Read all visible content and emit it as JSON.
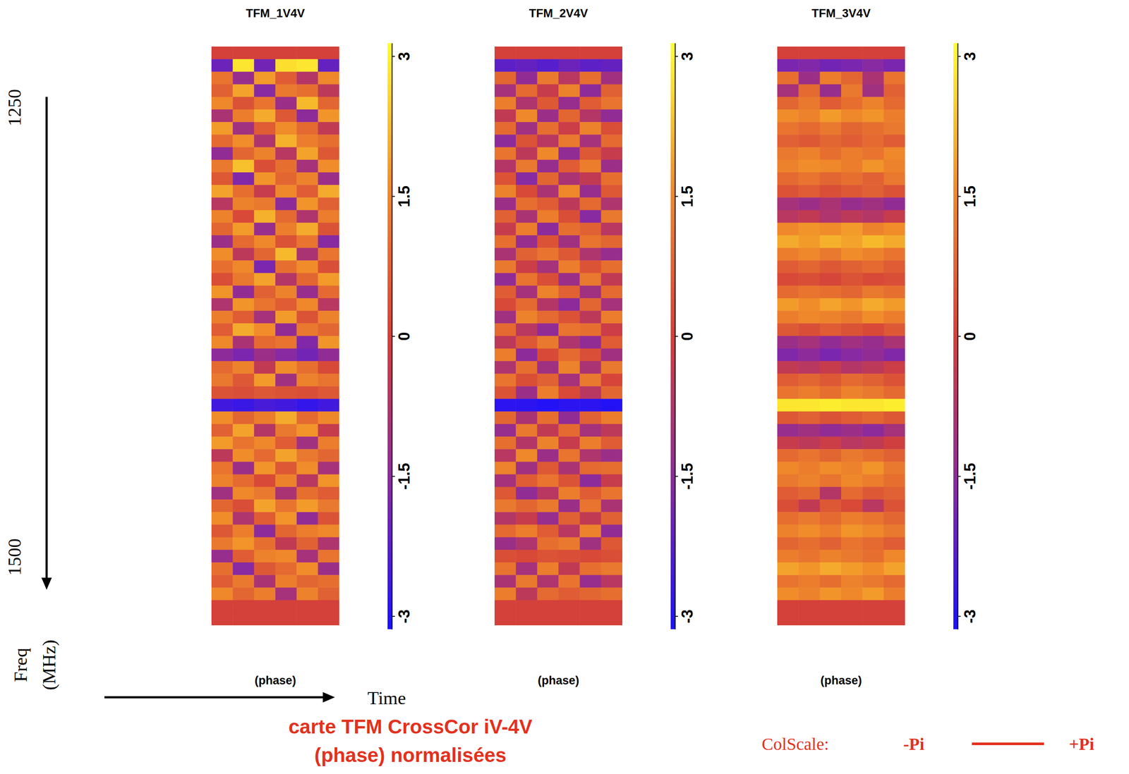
{
  "figure": {
    "y_label": "Freq (MHz)",
    "ylim": [
      1216,
      1538
    ],
    "yticks": [
      1250,
      1500
    ],
    "x_label": "Time",
    "caption": [
      "carte TFM CrossCor iV-4V",
      "(phase) normalisées"
    ],
    "color_scale": {
      "label": "ColScale:",
      "low": "-Pi",
      "high": "+Pi"
    }
  },
  "chart_data": [
    {
      "type": "heatmap",
      "title": "TFM_1V4V",
      "x_label": "(phase)",
      "colorbar": {
        "range": [
          -3.14,
          3.14
        ],
        "ticks": [
          3,
          1.5,
          0,
          -1.5,
          -3
        ]
      },
      "cells": [
        [
          0,
          0,
          0,
          0,
          0,
          0
        ],
        [
          -2.0,
          2.8,
          -1.9,
          2.7,
          2.8,
          -2.1
        ],
        [
          1.1,
          -1.3,
          1.8,
          0.6,
          -0.7,
          1.5
        ],
        [
          0.7,
          1.9,
          -1.6,
          1.2,
          1.0,
          -0.5
        ],
        [
          1.5,
          0.4,
          1.1,
          -1.2,
          2.2,
          0.8
        ],
        [
          -0.9,
          1.3,
          2.0,
          0.5,
          -1.5,
          1.7
        ],
        [
          1.8,
          -1.1,
          0.6,
          1.6,
          0.9,
          -0.4
        ],
        [
          0.9,
          1.6,
          -0.8,
          2.1,
          1.3,
          1.0
        ],
        [
          -1.4,
          0.8,
          1.4,
          -0.6,
          1.9,
          0.5
        ],
        [
          1.2,
          2.3,
          0.3,
          1.0,
          -1.0,
          1.6
        ],
        [
          0.5,
          -1.7,
          1.7,
          0.8,
          1.4,
          -1.2
        ],
        [
          1.9,
          1.0,
          -0.3,
          1.5,
          0.6,
          2.0
        ],
        [
          -0.6,
          1.4,
          1.2,
          -1.5,
          1.7,
          0.7
        ],
        [
          1.4,
          0.2,
          2.1,
          0.9,
          -0.8,
          1.3
        ],
        [
          0.8,
          1.8,
          -1.3,
          1.3,
          2.0,
          0.4
        ],
        [
          -1.2,
          0.9,
          1.5,
          0.4,
          1.1,
          -1.6
        ],
        [
          1.6,
          -0.5,
          0.8,
          2.2,
          -0.9,
          1.1
        ],
        [
          1.0,
          1.5,
          -1.8,
          1.0,
          1.6,
          0.3
        ],
        [
          0.3,
          1.2,
          1.9,
          -0.7,
          0.8,
          1.8
        ],
        [
          1.7,
          -1.4,
          0.7,
          1.4,
          -1.3,
          0.9
        ],
        [
          -0.8,
          1.7,
          1.1,
          0.6,
          1.5,
          -0.6
        ],
        [
          1.3,
          0.6,
          -1.0,
          1.8,
          0.4,
          1.4
        ],
        [
          0.6,
          2.0,
          1.6,
          -1.4,
          1.2,
          0.8
        ],
        [
          1.5,
          -0.9,
          0.9,
          1.1,
          -1.7,
          1.7
        ],
        [
          -1.5,
          -1.8,
          -1.2,
          -1.6,
          -1.9,
          -1.4
        ],
        [
          0.9,
          1.4,
          -0.4,
          1.6,
          1.0,
          0.2
        ],
        [
          1.2,
          0.5,
          1.8,
          -1.1,
          1.4,
          1.1
        ],
        [
          0.4,
          0.3,
          0.5,
          0.4,
          0.3,
          0.5
        ],
        [
          -2.6,
          -2.7,
          -2.5,
          -2.6,
          -2.8,
          -2.6
        ],
        [
          1.6,
          0.8,
          1.3,
          2.0,
          0.9,
          1.5
        ],
        [
          0.7,
          1.9,
          -0.7,
          1.2,
          1.7,
          -0.3
        ],
        [
          1.8,
          1.1,
          1.5,
          0.6,
          -1.1,
          1.3
        ],
        [
          -0.5,
          1.6,
          0.9,
          1.9,
          1.2,
          0.8
        ],
        [
          1.1,
          -1.2,
          1.7,
          0.5,
          1.6,
          -1.0
        ],
        [
          1.4,
          0.9,
          0.2,
          1.4,
          -0.6,
          1.7
        ],
        [
          -1.1,
          1.5,
          1.2,
          -0.9,
          1.0,
          0.6
        ],
        [
          0.8,
          0.3,
          1.9,
          1.1,
          1.8,
          1.2
        ],
        [
          1.6,
          -0.8,
          0.6,
          1.7,
          -1.4,
          0.4
        ],
        [
          0.5,
          1.3,
          -1.5,
          0.8,
          1.3,
          1.5
        ],
        [
          1.2,
          1.7,
          1.0,
          -0.4,
          0.7,
          -0.8
        ],
        [
          -1.3,
          0.6,
          1.4,
          1.5,
          -1.0,
          1.1
        ],
        [
          1.0,
          -1.6,
          0.5,
          0.9,
          1.6,
          -1.2
        ],
        [
          0.6,
          1.2,
          -0.9,
          1.3,
          0.8,
          1.0
        ],
        [
          1.5,
          0.8,
          1.3,
          -1.0,
          1.4,
          0.7
        ],
        [
          0,
          0,
          0,
          0,
          0,
          0
        ],
        [
          0,
          0,
          0,
          0,
          0,
          0
        ]
      ]
    },
    {
      "type": "heatmap",
      "title": "TFM_2V4V",
      "x_label": "(phase)",
      "colorbar": {
        "range": [
          -3.14,
          3.14
        ],
        "ticks": [
          3,
          1.5,
          0,
          -1.5,
          -3
        ]
      },
      "cells": [
        [
          0,
          0,
          0,
          0,
          0,
          0
        ],
        [
          -2.2,
          -2.1,
          -2.3,
          -2.0,
          -2.2,
          -2.1
        ],
        [
          0.8,
          -1.4,
          1.2,
          -0.6,
          1.0,
          -1.1
        ],
        [
          -1.0,
          0.9,
          -0.3,
          1.4,
          -1.5,
          0.7
        ],
        [
          1.3,
          -0.8,
          0.5,
          -1.3,
          0.6,
          1.1
        ],
        [
          -0.4,
          1.5,
          -1.2,
          0.8,
          -0.7,
          -1.4
        ],
        [
          0.9,
          -1.1,
          1.0,
          -0.2,
          1.4,
          0.3
        ],
        [
          -1.5,
          0.4,
          -0.6,
          1.2,
          -1.0,
          0.9
        ],
        [
          1.1,
          -0.5,
          1.5,
          -1.4,
          0.5,
          -0.3
        ],
        [
          -0.7,
          1.2,
          -1.3,
          0.6,
          1.3,
          -1.2
        ],
        [
          0.4,
          -1.6,
          0.8,
          -0.9,
          -0.4,
          1.0
        ],
        [
          1.4,
          0.2,
          -0.9,
          1.5,
          -1.3,
          0.5
        ],
        [
          -1.2,
          1.0,
          0.6,
          -0.5,
          0.9,
          -0.8
        ],
        [
          0.7,
          -0.9,
          1.3,
          0.3,
          -1.6,
          1.2
        ],
        [
          -0.3,
          1.3,
          -1.5,
          1.0,
          0.7,
          -0.6
        ],
        [
          1.0,
          -1.3,
          0.4,
          -1.1,
          1.1,
          0.8
        ],
        [
          -0.9,
          0.7,
          1.1,
          0.5,
          -0.8,
          -1.3
        ],
        [
          1.2,
          -0.2,
          -1.0,
          1.3,
          0.4,
          1.0
        ],
        [
          -1.4,
          1.1,
          0.3,
          -1.2,
          1.2,
          -0.4
        ],
        [
          0.6,
          -1.0,
          1.4,
          0.7,
          -1.1,
          0.9
        ],
        [
          0.2,
          0.9,
          -0.7,
          -1.5,
          0.8,
          -1.0
        ],
        [
          -1.1,
          1.4,
          0.9,
          0.4,
          -0.5,
          1.3
        ],
        [
          0.9,
          -0.6,
          -1.4,
          1.1,
          1.0,
          -0.2
        ],
        [
          -0.5,
          0.5,
          1.2,
          -0.8,
          -1.4,
          0.6
        ],
        [
          1.3,
          -1.5,
          0.2,
          0.9,
          0.3,
          -1.1
        ],
        [
          -0.8,
          1.0,
          -1.1,
          1.4,
          -0.9,
          1.2
        ],
        [
          1.1,
          0.3,
          0.7,
          -1.0,
          1.2,
          0.1
        ],
        [
          0.4,
          -1.2,
          1.3,
          0.2,
          -0.6,
          0.8
        ],
        [
          -2.9,
          -2.9,
          -3.0,
          -2.9,
          -2.9,
          -3.0
        ],
        [
          0.8,
          -0.9,
          1.0,
          -1.4,
          0.7,
          1.3
        ],
        [
          -1.3,
          1.2,
          -0.4,
          0.9,
          -1.0,
          -0.5
        ],
        [
          1.0,
          -0.7,
          1.4,
          -0.3,
          1.3,
          0.6
        ],
        [
          -0.6,
          1.5,
          -1.2,
          1.1,
          -0.8,
          -1.2
        ],
        [
          1.4,
          -1.1,
          0.5,
          -0.9,
          0.9,
          1.0
        ],
        [
          -1.0,
          0.6,
          1.1,
          0.4,
          -1.5,
          -0.3
        ],
        [
          0.5,
          -1.4,
          -0.6,
          1.3,
          0.6,
          1.1
        ],
        [
          1.2,
          0.8,
          1.2,
          -1.2,
          1.1,
          -0.9
        ],
        [
          -0.7,
          -0.3,
          -1.3,
          0.7,
          -0.4,
          0.7
        ],
        [
          0.9,
          1.3,
          0.6,
          -0.6,
          1.4,
          -1.4
        ],
        [
          -1.2,
          -0.8,
          1.0,
          1.2,
          -1.1,
          0.5
        ],
        [
          0.3,
          0.2,
          0.4,
          0.3,
          0.2,
          0.3
        ],
        [
          1.1,
          -1.0,
          1.3,
          -0.4,
          1.0,
          1.2
        ],
        [
          -0.9,
          1.2,
          -0.8,
          1.1,
          -1.3,
          -0.6
        ],
        [
          1.3,
          -0.5,
          0.9,
          0.6,
          0.8,
          1.0
        ],
        [
          0,
          0,
          0,
          0,
          0,
          0
        ],
        [
          0,
          0,
          0,
          0,
          0,
          0
        ]
      ]
    },
    {
      "type": "heatmap",
      "title": "TFM_3V4V",
      "x_label": "(phase)",
      "colorbar": {
        "range": [
          -3.14,
          3.14
        ],
        "ticks": [
          3,
          1.5,
          0,
          -1.5,
          -3
        ]
      },
      "cells": [
        [
          0,
          0,
          0,
          0,
          0,
          0
        ],
        [
          -1.8,
          -1.7,
          -1.9,
          -1.8,
          -1.6,
          -1.8
        ],
        [
          1.0,
          -1.2,
          1.3,
          0.8,
          -0.9,
          1.1
        ],
        [
          -1.0,
          0.9,
          -1.3,
          1.2,
          -1.1,
          0.7
        ],
        [
          0.8,
          1.2,
          0.6,
          1.0,
          1.4,
          0.9
        ],
        [
          1.6,
          1.4,
          1.8,
          1.5,
          1.7,
          1.3
        ],
        [
          1.1,
          0.9,
          1.2,
          0.8,
          1.0,
          1.2
        ],
        [
          0.7,
          0.5,
          0.8,
          0.6,
          0.9,
          0.6
        ],
        [
          1.2,
          1.4,
          1.0,
          1.3,
          1.1,
          1.5
        ],
        [
          1.4,
          1.6,
          1.5,
          1.3,
          1.7,
          1.4
        ],
        [
          0.9,
          1.1,
          0.8,
          1.0,
          0.7,
          1.2
        ],
        [
          0.4,
          0.6,
          0.3,
          0.5,
          0.7,
          0.4
        ],
        [
          -1.0,
          -1.2,
          -0.9,
          -1.3,
          -1.1,
          -1.4
        ],
        [
          -0.6,
          -0.4,
          -0.8,
          -0.5,
          -0.7,
          -0.3
        ],
        [
          1.5,
          1.7,
          1.6,
          1.8,
          1.4,
          1.6
        ],
        [
          2.0,
          1.8,
          2.1,
          1.9,
          2.2,
          2.0
        ],
        [
          1.3,
          1.5,
          1.2,
          1.6,
          1.4,
          1.1
        ],
        [
          0.6,
          0.8,
          0.5,
          0.7,
          0.9,
          0.6
        ],
        [
          0.2,
          0.3,
          0.1,
          0.4,
          0.2,
          0.3
        ],
        [
          0.9,
          1.1,
          1.0,
          0.8,
          1.2,
          1.0
        ],
        [
          1.8,
          1.6,
          1.9,
          1.7,
          2.0,
          1.8
        ],
        [
          1.3,
          1.5,
          1.4,
          1.2,
          1.6,
          1.3
        ],
        [
          0.5,
          0.3,
          0.6,
          0.4,
          0.2,
          0.5
        ],
        [
          -1.2,
          -1.0,
          -1.4,
          -1.1,
          -1.3,
          -0.9
        ],
        [
          -1.7,
          -1.5,
          -1.8,
          -1.6,
          -1.4,
          -1.7
        ],
        [
          -0.4,
          -0.6,
          -0.3,
          -0.7,
          -0.5,
          -0.2
        ],
        [
          0.6,
          0.8,
          0.5,
          0.9,
          0.7,
          0.4
        ],
        [
          1.1,
          1.3,
          1.0,
          1.4,
          1.2,
          0.9
        ],
        [
          2.8,
          2.8,
          2.9,
          2.8,
          2.8,
          2.9
        ],
        [
          0.5,
          0.7,
          0.4,
          0.6,
          0.8,
          0.5
        ],
        [
          -1.3,
          -1.1,
          -1.4,
          -1.2,
          -1.5,
          -1.0
        ],
        [
          -0.3,
          -0.5,
          -0.2,
          -0.6,
          -0.4,
          -0.1
        ],
        [
          0.9,
          1.1,
          0.8,
          1.2,
          1.0,
          0.7
        ],
        [
          1.5,
          1.3,
          1.6,
          1.4,
          1.7,
          1.2
        ],
        [
          1.2,
          1.4,
          1.1,
          1.5,
          1.3,
          1.0
        ],
        [
          0.6,
          0.8,
          -0.7,
          0.9,
          0.5,
          0.7
        ],
        [
          0.3,
          -0.4,
          0.5,
          0.2,
          -0.6,
          0.4
        ],
        [
          1.0,
          1.2,
          0.9,
          1.3,
          1.1,
          0.8
        ],
        [
          1.4,
          1.6,
          1.3,
          1.7,
          1.5,
          1.2
        ],
        [
          0.8,
          1.0,
          0.7,
          1.1,
          0.9,
          0.6
        ],
        [
          1.3,
          1.1,
          1.4,
          1.2,
          1.0,
          1.5
        ],
        [
          1.9,
          1.7,
          2.0,
          1.8,
          1.6,
          1.9
        ],
        [
          1.1,
          1.3,
          1.0,
          1.4,
          1.2,
          0.9
        ],
        [
          1.6,
          1.4,
          1.7,
          1.5,
          1.8,
          1.3
        ],
        [
          0,
          0,
          0,
          0,
          0,
          0
        ],
        [
          0,
          0,
          0,
          0,
          0,
          0
        ]
      ]
    }
  ]
}
